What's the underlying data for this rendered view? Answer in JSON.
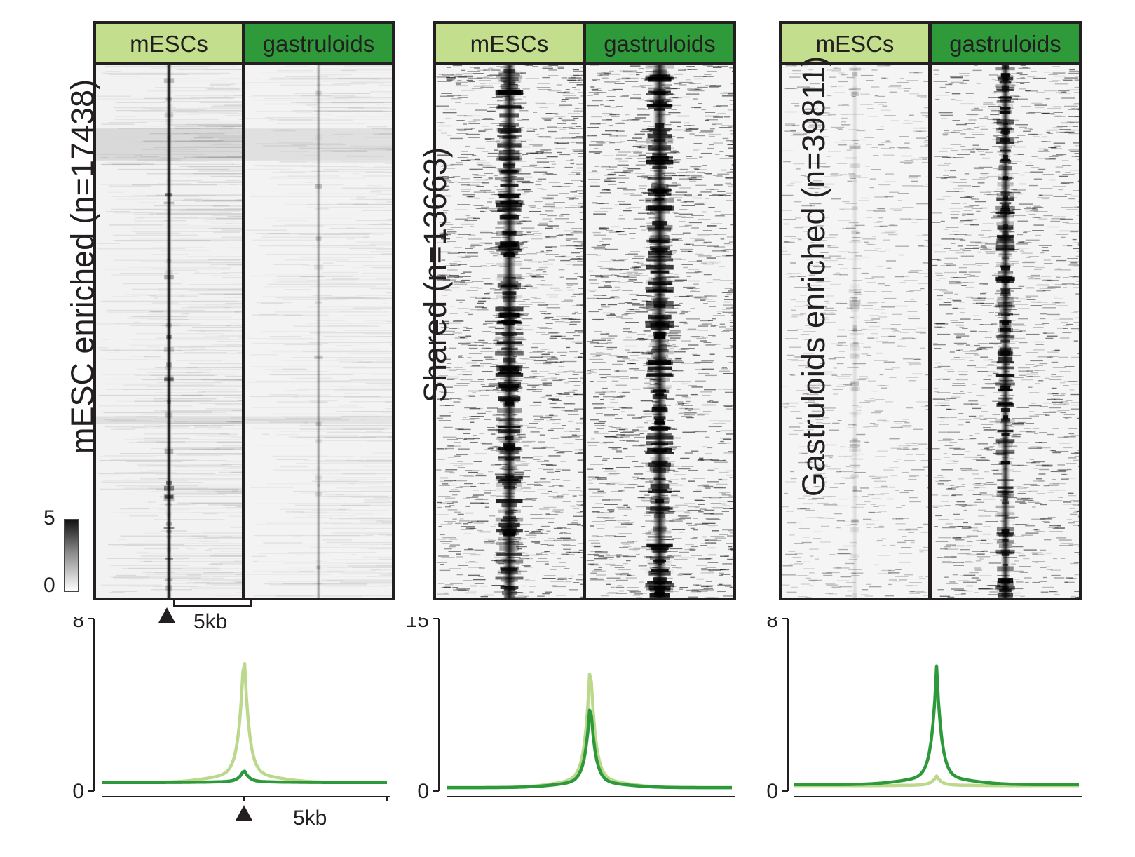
{
  "colors": {
    "mescs": "#bcd88c",
    "gastruloids": "#2c9a3a",
    "mescs_header": "#c3df8d",
    "gastruloids_header": "#2f9a3a"
  },
  "colorbar": {
    "max_label": "5",
    "min_label": "0"
  },
  "scale_label": "5kb",
  "panels": [
    {
      "id": "mesc-enriched",
      "ylabel": "mESC enriched (n=17438)",
      "left_header": "mESCs",
      "right_header": "gastruloids"
    },
    {
      "id": "shared",
      "ylabel": "Shared (n=13663)",
      "left_header": "mESCs",
      "right_header": "gastruloids"
    },
    {
      "id": "gastruloids-enriched",
      "ylabel": "Gastruloids enriched (n=39811)",
      "left_header": "mESCs",
      "right_header": "gastruloids"
    }
  ],
  "chart_data": [
    {
      "type": "line",
      "title": "",
      "xlabel": "5kb",
      "ylabel": "",
      "ylim": [
        0,
        8
      ],
      "yticks": [
        "0",
        "8"
      ],
      "grid": false,
      "series": [
        {
          "color": "#bcd88c",
          "baseline": 0.4,
          "peak": 6.7
        },
        {
          "color": "#2c9a3a",
          "baseline": 0.4,
          "peak": 1.0
        }
      ]
    },
    {
      "type": "line",
      "title": "",
      "xlabel": "",
      "ylabel": "",
      "ylim": [
        0,
        15
      ],
      "yticks": [
        "0",
        "15"
      ],
      "grid": false,
      "series": [
        {
          "color": "#bcd88c",
          "baseline": 0.3,
          "peak": 11.6
        },
        {
          "color": "#2c9a3a",
          "baseline": 0.3,
          "peak": 8.0
        }
      ]
    },
    {
      "type": "line",
      "title": "",
      "xlabel": "",
      "ylabel": "",
      "ylim": [
        0,
        8
      ],
      "yticks": [
        "0",
        "8"
      ],
      "grid": false,
      "series": [
        {
          "color": "#bcd88c",
          "baseline": 0.25,
          "peak": 0.7
        },
        {
          "color": "#2c9a3a",
          "baseline": 0.3,
          "peak": 5.8
        }
      ]
    }
  ]
}
